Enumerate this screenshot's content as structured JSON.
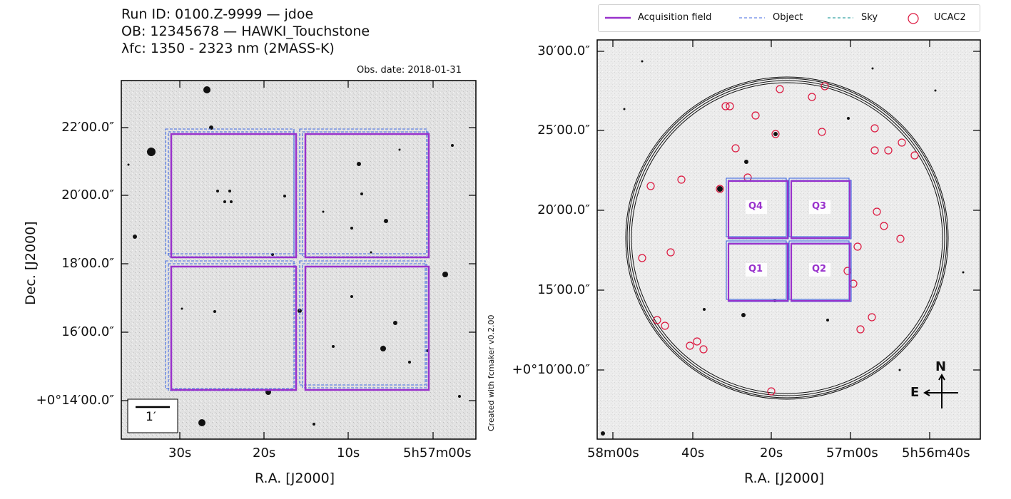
{
  "header": {
    "line1": "Run ID: 0100.Z-9999 — jdoe",
    "line2": "OB: 12345678 — HAWKI_Touchstone",
    "line3": "λfc: 1350 - 2323 nm (2MASS-K)"
  },
  "left_panel": {
    "obs_date": "Obs. date: 2018-01-31",
    "ylabel": "Dec. [J2000]",
    "xlabel": "R.A. [J2000]",
    "yticks": [
      "22′00.0″",
      "20′00.0″",
      "18′00.0″",
      "16′00.0″",
      "+0°14′00.0″"
    ],
    "xticks": [
      "30s",
      "20s",
      "10s",
      "5h57m00s"
    ],
    "scale_bar": "1′",
    "credit": "Created with fcmaker v0.2.00"
  },
  "right_panel": {
    "xlabel": "R.A. [J2000]",
    "yticks": [
      "30′00.0″",
      "25′00.0″",
      "20′00.0″",
      "15′00.0″",
      "+0°10′00.0″"
    ],
    "xticks": [
      "58m00s",
      "40s",
      "20s",
      "57m00s",
      "5h56m40s"
    ],
    "quadrants": [
      "Q4",
      "Q3",
      "Q1",
      "Q2"
    ],
    "compass_n": "N",
    "compass_e": "E"
  },
  "legend": {
    "acq": "Acquisition field",
    "object": "Object",
    "sky": "Sky",
    "ucac": "UCAC2"
  },
  "colors": {
    "acquisition": "#9932cc",
    "object": "#4169e1",
    "sky": "#008b8b",
    "ucac": "#dc143c"
  }
}
